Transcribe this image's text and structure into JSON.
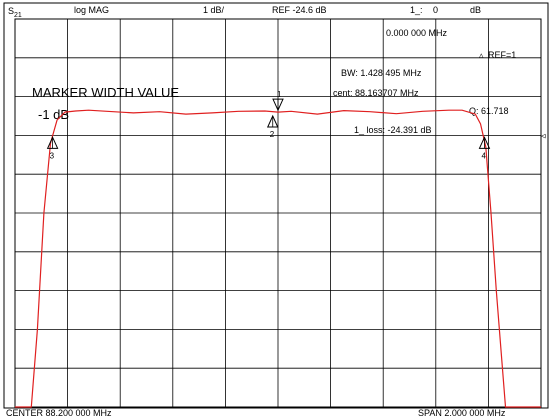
{
  "header": {
    "channel": "S",
    "channel_sub": "21",
    "format": "log MAG",
    "scale": "1 dB/",
    "reference": "REF -24.6 dB",
    "marker_label": "1_:",
    "marker_value": "0",
    "marker_unit": "dB"
  },
  "annotations": {
    "marker_freq": "0.000 000 MHz",
    "ref_marker": "REF=1",
    "bw": "BW:   1.428 495 MHz",
    "cent": "cent:  88.163707 MHz",
    "q": "Q: 61.718",
    "loss": "1_ loss: -24.391 dB",
    "title": "MARKER WIDTH VALUE",
    "subtitle": "-1 dB"
  },
  "footer": {
    "center": "CENTER  88.200 000 MHz",
    "span": "SPAN   2.000 000 MHz"
  },
  "colors": {
    "trace": "#e02020",
    "grid": "#000000",
    "background": "#ffffff"
  },
  "chart_data": {
    "type": "line",
    "title": "",
    "xlabel": "",
    "ylabel": "",
    "x_unit": "MHz",
    "y_unit": "dB",
    "xlim": [
      87.2,
      89.2
    ],
    "ylim": [
      -34.6,
      -24.6
    ],
    "grid": true,
    "series": [
      {
        "name": "",
        "x": [
          87.2,
          87.262,
          87.285,
          87.31,
          87.335,
          87.36,
          87.39,
          87.43,
          87.48,
          87.55,
          87.65,
          87.75,
          87.85,
          87.95,
          88.05,
          88.15,
          88.2,
          88.25,
          88.35,
          88.45,
          88.55,
          88.65,
          88.75,
          88.85,
          88.9,
          88.95,
          88.97,
          88.99,
          89.01,
          89.03,
          89.065,
          89.2
        ],
        "y": [
          -34.6,
          -34.6,
          -32.6,
          -29.6,
          -27.8,
          -27.2,
          -27.0,
          -26.97,
          -26.95,
          -26.98,
          -27.02,
          -26.99,
          -27.05,
          -27.02,
          -26.98,
          -26.97,
          -27.0,
          -26.98,
          -27.05,
          -26.96,
          -26.99,
          -27.04,
          -26.98,
          -26.95,
          -26.95,
          -27.05,
          -27.3,
          -27.9,
          -29.6,
          -31.6,
          -34.6,
          -34.6
        ]
      }
    ],
    "markers": [
      {
        "label": "1",
        "x": 88.2,
        "y": -26.95,
        "direction": "down"
      },
      {
        "label": "2",
        "x": 88.18,
        "y": -27.1,
        "direction": "up"
      },
      {
        "label": "3",
        "x": 87.343,
        "y": -27.65,
        "direction": "up"
      },
      {
        "label": "4",
        "x": 88.985,
        "y": -27.65,
        "direction": "up"
      }
    ],
    "ref_level": -27.6
  }
}
